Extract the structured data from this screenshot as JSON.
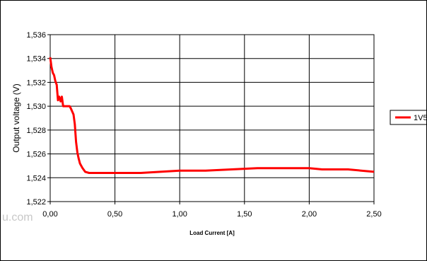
{
  "chart_data": {
    "type": "line",
    "title": "",
    "xlabel": "Load Current  [A]",
    "ylabel": "Output voltage (V)",
    "xlim": [
      0,
      2.5
    ],
    "ylim": [
      1.522,
      1.536
    ],
    "x_ticks": [
      "0,00",
      "0,50",
      "1,00",
      "1,50",
      "2,00",
      "2,50"
    ],
    "y_ticks": [
      "1,522",
      "1,524",
      "1,526",
      "1,528",
      "1,530",
      "1,532",
      "1,534",
      "1,536"
    ],
    "grid": "vertical and horizontal major gridlines",
    "legend_position": "right",
    "series": [
      {
        "name": "1V5",
        "color": "#ff0000",
        "x": [
          0.0,
          0.01,
          0.02,
          0.03,
          0.04,
          0.05,
          0.06,
          0.07,
          0.08,
          0.09,
          0.1,
          0.15,
          0.16,
          0.18,
          0.19,
          0.2,
          0.21,
          0.22,
          0.23,
          0.25,
          0.27,
          0.3,
          0.35,
          0.5,
          0.7,
          0.85,
          1.0,
          1.2,
          1.4,
          1.6,
          1.8,
          2.0,
          2.1,
          2.3,
          2.5
        ],
        "y": [
          1.5341,
          1.5333,
          1.5328,
          1.5326,
          1.5321,
          1.5318,
          1.5305,
          1.5308,
          1.5304,
          1.5308,
          1.53,
          1.53,
          1.5298,
          1.5293,
          1.5285,
          1.527,
          1.5261,
          1.5256,
          1.5252,
          1.5248,
          1.5245,
          1.5244,
          1.5244,
          1.5244,
          1.5244,
          1.5245,
          1.5246,
          1.5246,
          1.5247,
          1.5248,
          1.5248,
          1.5248,
          1.5247,
          1.5247,
          1.5245
        ]
      }
    ]
  },
  "watermark": "u.com",
  "colors": {
    "series_line": "#ff0000",
    "grid": "#000000",
    "background": "#ffffff"
  }
}
